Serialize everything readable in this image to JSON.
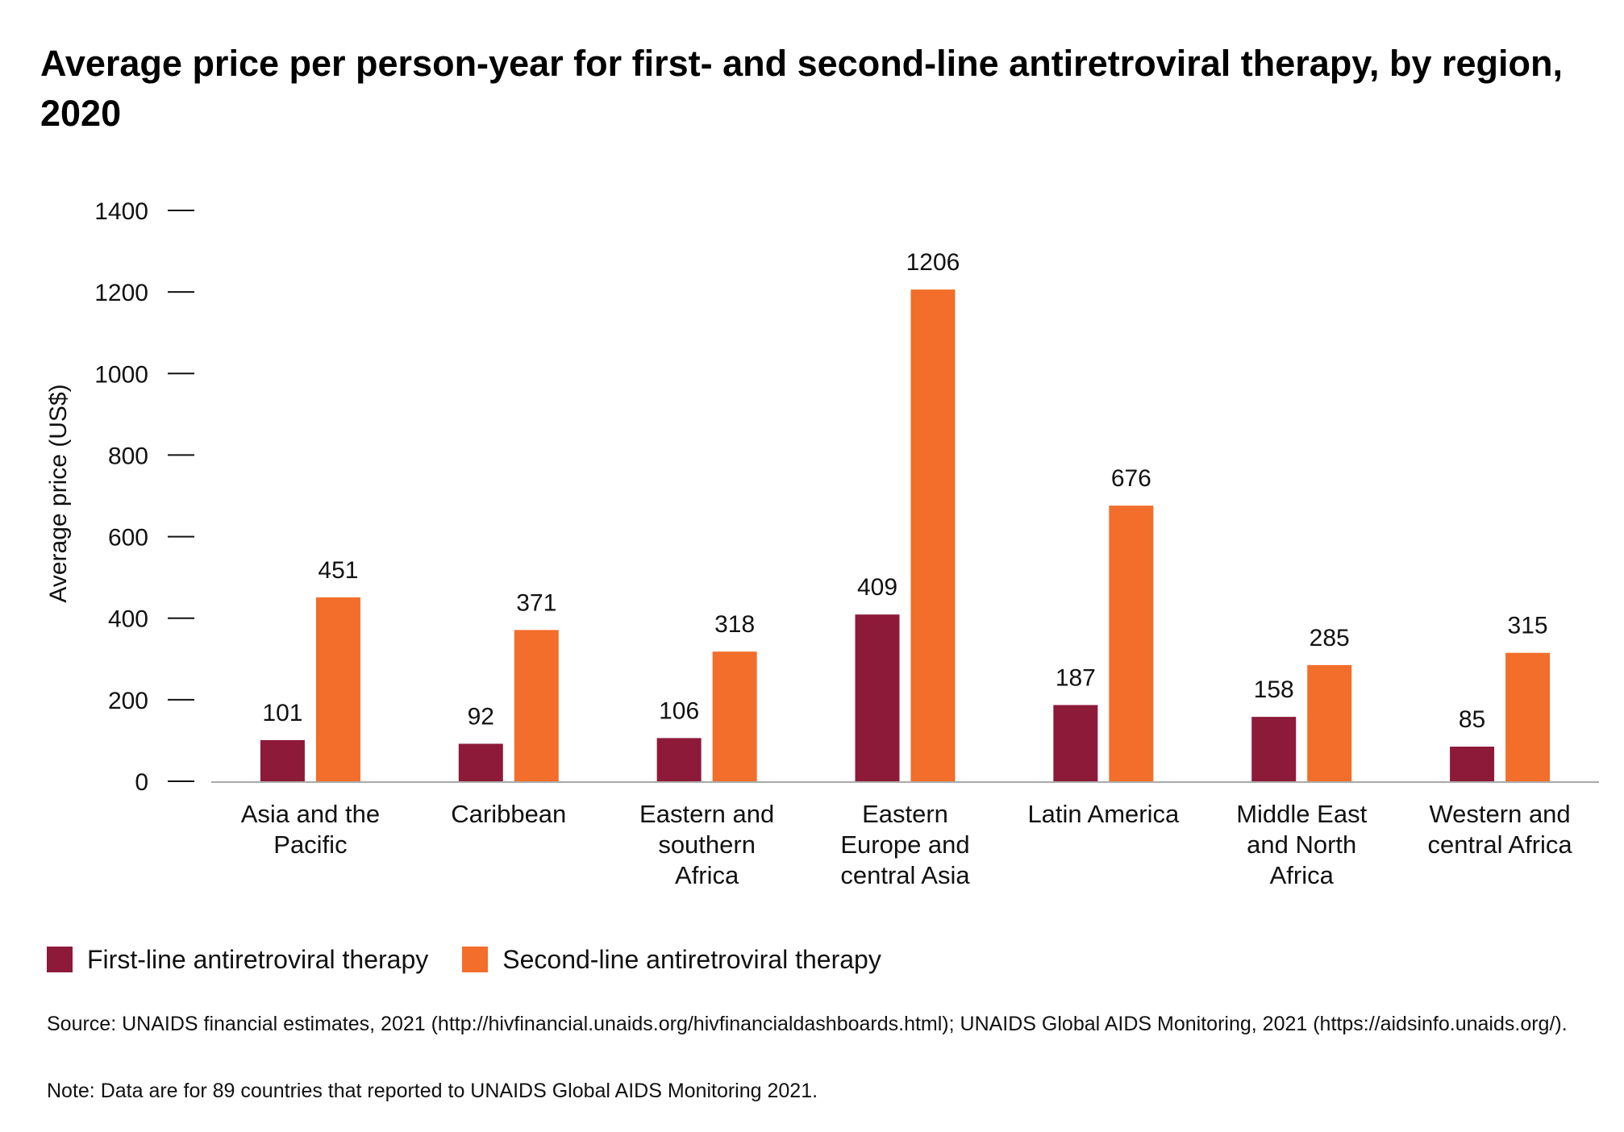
{
  "chart_data": {
    "type": "bar",
    "title": "Average price per person-year for first- and second-line antiretroviral therapy, by region, 2020",
    "ylabel": "Average price (US$)",
    "xlabel": "",
    "ylim": [
      0,
      1400
    ],
    "yticks": [
      0,
      200,
      400,
      600,
      800,
      1000,
      1200,
      1400
    ],
    "grid": false,
    "legend_position": "bottom-left",
    "categories": [
      [
        "Asia and the",
        "Pacific"
      ],
      [
        "Caribbean"
      ],
      [
        "Eastern and",
        "southern",
        "Africa"
      ],
      [
        "Eastern",
        "Europe and",
        "central Asia"
      ],
      [
        "Latin America"
      ],
      [
        "Middle East",
        "and North",
        "Africa"
      ],
      [
        "Western and",
        "central Africa"
      ]
    ],
    "series": [
      {
        "name": "First-line antiretroviral therapy",
        "color": "#8e1a3a",
        "values": [
          101,
          92,
          106,
          409,
          187,
          158,
          85
        ]
      },
      {
        "name": "Second-line antiretroviral therapy",
        "color": "#f26e2a",
        "values": [
          451,
          371,
          318,
          1206,
          676,
          285,
          315
        ]
      }
    ]
  },
  "footer": {
    "source": "Source: UNAIDS financial estimates, 2021 (http://hivfinancial.unaids.org/hivfinancialdashboards.html); UNAIDS Global AIDS Monitoring, 2021 (https://aidsinfo.unaids.org/).",
    "note": "Note: Data are for 89 countries that reported to UNAIDS Global AIDS Monitoring 2021."
  }
}
